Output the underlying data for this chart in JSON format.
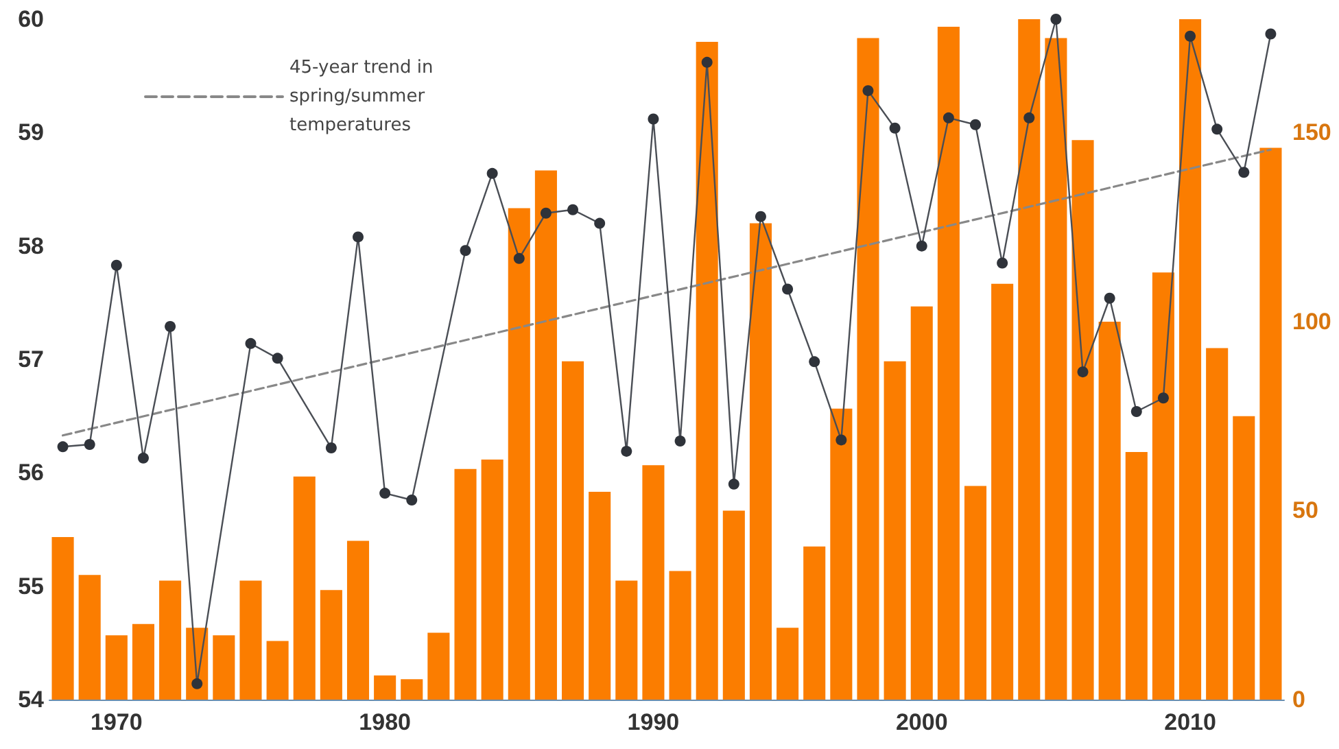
{
  "chart_data": {
    "type": "bar",
    "x": [
      1968,
      1969,
      1970,
      1971,
      1972,
      1973,
      1974,
      1975,
      1976,
      1977,
      1978,
      1979,
      1980,
      1981,
      1982,
      1983,
      1984,
      1985,
      1986,
      1987,
      1988,
      1989,
      1990,
      1991,
      1992,
      1993,
      1994,
      1995,
      1996,
      1997,
      1998,
      1999,
      2000,
      2001,
      2002,
      2003,
      2004,
      2005,
      2006,
      2007,
      2008,
      2009,
      2010,
      2011,
      2012,
      2013
    ],
    "series": [
      {
        "axis": "y2",
        "color": "#fb7d00",
        "values": [
          43,
          33,
          17,
          20,
          31.5,
          19,
          17,
          31.5,
          15.5,
          59,
          29,
          42,
          6.4,
          5.4,
          17.7,
          61,
          63.5,
          130,
          140,
          89.5,
          55,
          31.5,
          62,
          34,
          174,
          50,
          126,
          19,
          40.5,
          77,
          175,
          89.5,
          104,
          178,
          56.5,
          110,
          180,
          175,
          148,
          100,
          65.5,
          113,
          180,
          93,
          75,
          146
        ]
      },
      {
        "type": "line",
        "color": "#4a4e55",
        "marker": "circle",
        "line_style": "solid",
        "values": [
          56.23,
          56.25,
          57.83,
          56.13,
          57.29,
          54.14,
          null,
          57.14,
          57.01,
          null,
          56.22,
          58.08,
          55.82,
          55.76,
          null,
          57.96,
          58.64,
          57.89,
          58.29,
          58.32,
          58.2,
          56.19,
          59.12,
          56.28,
          59.62,
          55.9,
          58.26,
          57.62,
          56.98,
          56.29,
          59.37,
          59.04,
          58.0,
          59.13,
          59.07,
          57.85,
          59.13,
          60,
          56.89,
          57.54,
          56.54,
          56.66,
          59.85,
          59.03,
          58.65,
          59.87
        ]
      },
      {
        "type": "line",
        "name": "45-year trend in spring/summer temperatures",
        "color": "#888888",
        "marker": "none",
        "line_style": "dashed",
        "x": [
          1968,
          2013
        ],
        "values": [
          56.33,
          58.85
        ]
      }
    ],
    "xlim": [
      1967.5,
      2013.5
    ],
    "xticks": [
      1970,
      1980,
      1990,
      2000,
      2010
    ],
    "ylim": [
      54,
      60
    ],
    "yticks": [
      54,
      55,
      56,
      57,
      58,
      59,
      60
    ],
    "y2lim": [
      0,
      180
    ],
    "y2ticks": [
      0,
      50,
      100,
      150
    ],
    "grid": false,
    "legend": "top left"
  }
}
